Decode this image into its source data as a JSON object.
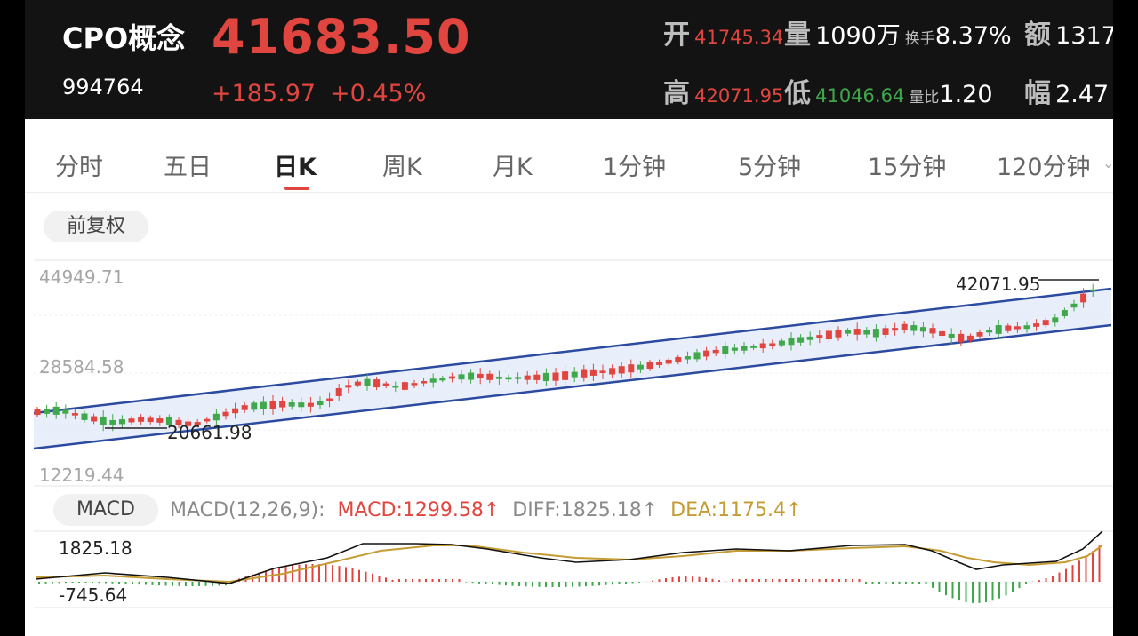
{
  "header": {
    "name": "CPO概念",
    "code": "994764",
    "price": "41683.50",
    "change": "+185.97",
    "change_pct": "+0.45%",
    "open_label": "开",
    "open_value": "41745.34",
    "volume_label": "量",
    "volume_value": "1090万",
    "turnover_label": "换手",
    "turnover_value": "8.37%",
    "amount_label": "额",
    "amount_value": "1317",
    "high_label": "高",
    "high_value": "42071.95",
    "low_label": "低",
    "low_value": "41046.64",
    "vol_ratio_label": "量比",
    "vol_ratio_value": "1.20",
    "amplitude_label": "幅",
    "amplitude_value": "2.47"
  },
  "tabs": [
    {
      "label": "分时",
      "active": false
    },
    {
      "label": "五日",
      "active": false
    },
    {
      "label": "日K",
      "active": true
    },
    {
      "label": "周K",
      "active": false
    },
    {
      "label": "月K",
      "active": false
    },
    {
      "label": "1分钟",
      "active": false
    },
    {
      "label": "5分钟",
      "active": false
    },
    {
      "label": "15分钟",
      "active": false
    },
    {
      "label": "120分钟",
      "active": false
    }
  ],
  "adjust_label": "前复权",
  "kline": {
    "y_max_label": "44949.71",
    "y_mid_label": "28584.58",
    "y_min_label": "12219.44",
    "high_mark": "42071.95",
    "low_mark": "20661.98"
  },
  "macd": {
    "pill": "MACD",
    "params": "MACD(12,26,9):",
    "macd_text": "MACD:1299.58↑",
    "diff_text": "DIFF:1825.18↑",
    "dea_text": "DEA:1175.4↑",
    "max_label": "1825.18",
    "min_label": "-745.64"
  },
  "colors": {
    "up": "#e0463f",
    "down": "#3fa84a",
    "channel": "#2b4aa0",
    "dea": "#c59b33"
  },
  "chart_data": {
    "type": "candlestick",
    "ylim": [
      12219.44,
      44949.71
    ],
    "y_ticks": [
      44949.71,
      28584.58,
      12219.44
    ],
    "marked_high": 42071.95,
    "marked_low": 20661.98,
    "indicator": {
      "name": "MACD(12,26,9)",
      "MACD": 1299.58,
      "DIFF": 1825.18,
      "DEA": 1175.4,
      "range": [
        -745.64,
        1825.18
      ]
    }
  }
}
